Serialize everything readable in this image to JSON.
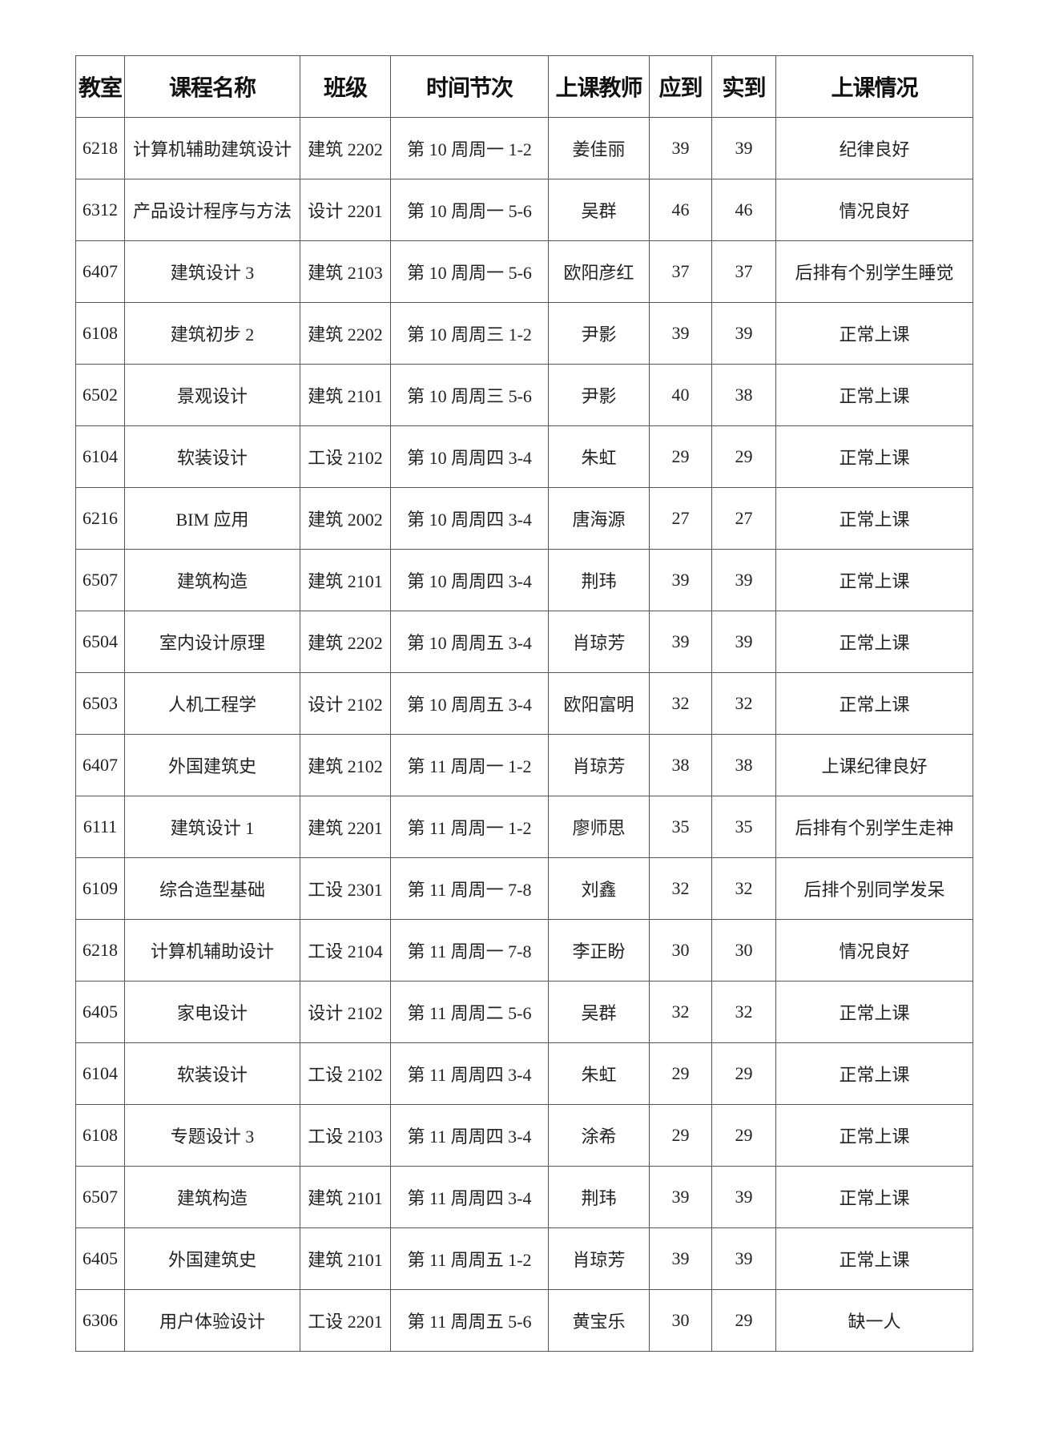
{
  "table": {
    "headers": [
      "教室",
      "课程名称",
      "班级",
      "时间节次",
      "上课教师",
      "应到",
      "实到",
      "上课情况"
    ],
    "rows": [
      [
        "6218",
        "计算机辅助建筑设计",
        "建筑 2202",
        "第 10 周周一 1-2",
        "姜佳丽",
        "39",
        "39",
        "纪律良好"
      ],
      [
        "6312",
        "产品设计程序与方法",
        "设计 2201",
        "第 10 周周一 5-6",
        "吴群",
        "46",
        "46",
        "情况良好"
      ],
      [
        "6407",
        "建筑设计 3",
        "建筑 2103",
        "第 10 周周一 5-6",
        "欧阳彦红",
        "37",
        "37",
        "后排有个别学生睡觉"
      ],
      [
        "6108",
        "建筑初步 2",
        "建筑 2202",
        "第 10 周周三 1-2",
        "尹影",
        "39",
        "39",
        "正常上课"
      ],
      [
        "6502",
        "景观设计",
        "建筑 2101",
        "第 10 周周三 5-6",
        "尹影",
        "40",
        "38",
        "正常上课"
      ],
      [
        "6104",
        "软装设计",
        "工设 2102",
        "第 10 周周四 3-4",
        "朱虹",
        "29",
        "29",
        "正常上课"
      ],
      [
        "6216",
        "BIM 应用",
        "建筑 2002",
        "第 10 周周四 3-4",
        "唐海源",
        "27",
        "27",
        "正常上课"
      ],
      [
        "6507",
        "建筑构造",
        "建筑 2101",
        "第 10 周周四 3-4",
        "荆玮",
        "39",
        "39",
        "正常上课"
      ],
      [
        "6504",
        "室内设计原理",
        "建筑 2202",
        "第 10 周周五 3-4",
        "肖琼芳",
        "39",
        "39",
        "正常上课"
      ],
      [
        "6503",
        "人机工程学",
        "设计 2102",
        "第 10 周周五 3-4",
        "欧阳富明",
        "32",
        "32",
        "正常上课"
      ],
      [
        "6407",
        "外国建筑史",
        "建筑 2102",
        "第 11 周周一 1-2",
        "肖琼芳",
        "38",
        "38",
        "上课纪律良好"
      ],
      [
        "6111",
        "建筑设计 1",
        "建筑 2201",
        "第 11 周周一 1-2",
        "廖师思",
        "35",
        "35",
        "后排有个别学生走神"
      ],
      [
        "6109",
        "综合造型基础",
        "工设 2301",
        "第 11 周周一 7-8",
        "刘鑫",
        "32",
        "32",
        "后排个别同学发呆"
      ],
      [
        "6218",
        "计算机辅助设计",
        "工设 2104",
        "第 11 周周一 7-8",
        "李正盼",
        "30",
        "30",
        "情况良好"
      ],
      [
        "6405",
        "家电设计",
        "设计 2102",
        "第 11 周周二 5-6",
        "吴群",
        "32",
        "32",
        "正常上课"
      ],
      [
        "6104",
        "软装设计",
        "工设 2102",
        "第 11 周周四 3-4",
        "朱虹",
        "29",
        "29",
        "正常上课"
      ],
      [
        "6108",
        "专题设计 3",
        "工设 2103",
        "第 11 周周四 3-4",
        "涂希",
        "29",
        "29",
        "正常上课"
      ],
      [
        "6507",
        "建筑构造",
        "建筑 2101",
        "第 11 周周四 3-4",
        "荆玮",
        "39",
        "39",
        "正常上课"
      ],
      [
        "6405",
        "外国建筑史",
        "建筑 2101",
        "第 11 周周五 1-2",
        "肖琼芳",
        "39",
        "39",
        "正常上课"
      ],
      [
        "6306",
        "用户体验设计",
        "工设 2201",
        "第 11 周周五 5-6",
        "黄宝乐",
        "30",
        "29",
        "缺一人"
      ]
    ]
  }
}
